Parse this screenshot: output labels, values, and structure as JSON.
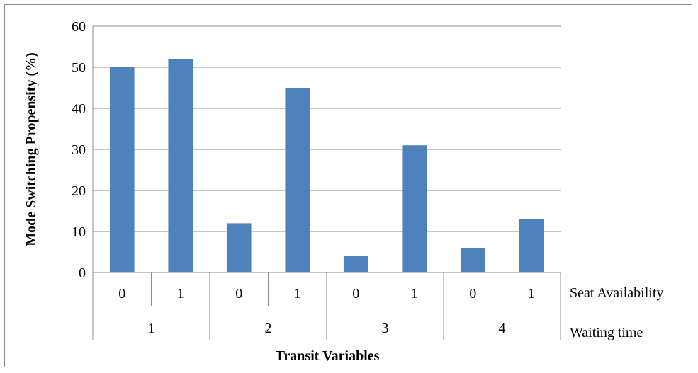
{
  "chart_data": {
    "type": "bar",
    "title": "",
    "xlabel": "Transit Variables",
    "ylabel": "Mode Switching Propensity  (%)",
    "ylim": [
      0,
      60
    ],
    "yticks": [
      "0",
      "10",
      "20",
      "30",
      "40",
      "50",
      "60"
    ],
    "grid": true,
    "categories": [
      {
        "seat": "0",
        "waiting": "1"
      },
      {
        "seat": "1",
        "waiting": "1"
      },
      {
        "seat": "0",
        "waiting": "2"
      },
      {
        "seat": "1",
        "waiting": "2"
      },
      {
        "seat": "0",
        "waiting": "3"
      },
      {
        "seat": "1",
        "waiting": "3"
      },
      {
        "seat": "0",
        "waiting": "4"
      },
      {
        "seat": "1",
        "waiting": "4"
      }
    ],
    "values": [
      50,
      52,
      12,
      45,
      4,
      31,
      6,
      13
    ],
    "groups": [
      "1",
      "2",
      "3",
      "4"
    ],
    "level_labels": {
      "seat": "Seat Availability",
      "waiting": "Waiting time"
    },
    "bar_color": "#4f81bd"
  }
}
